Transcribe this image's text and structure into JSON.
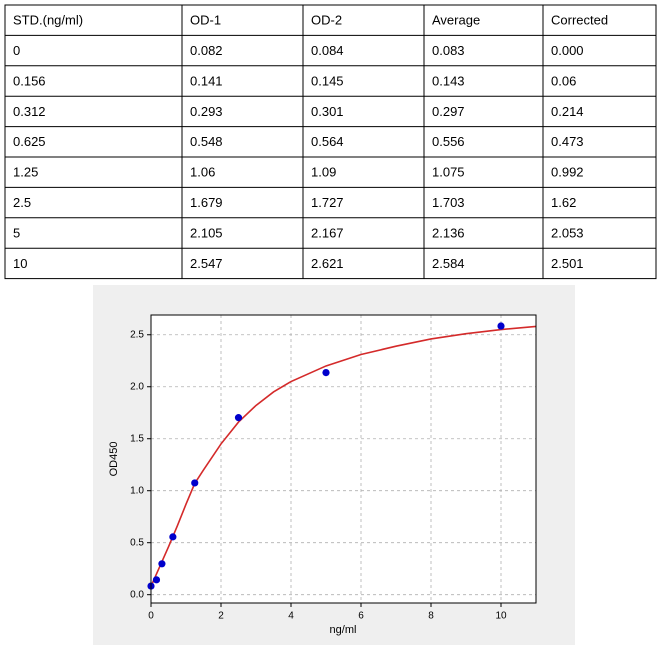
{
  "table": {
    "header": [
      "STD.(ng/ml)",
      "OD-1",
      "OD-2",
      "Average",
      "Corrected"
    ],
    "rows": [
      [
        "0",
        "0.082",
        "0.084",
        "0.083",
        "0.000"
      ],
      [
        "0.156",
        "0.141",
        "0.145",
        "0.143",
        "0.06"
      ],
      [
        "0.312",
        "0.293",
        "0.301",
        "0.297",
        "0.214"
      ],
      [
        "0.625",
        "0.548",
        "0.564",
        "0.556",
        "0.473"
      ],
      [
        "1.25",
        "1.06",
        "1.09",
        "1.075",
        "0.992"
      ],
      [
        "2.5",
        "1.679",
        "1.727",
        "1.703",
        "1.62"
      ],
      [
        "5",
        "2.105",
        "2.167",
        "2.136",
        "2.053"
      ],
      [
        "10",
        "2.547",
        "2.621",
        "2.584",
        "2.501"
      ]
    ]
  },
  "chart_data": {
    "type": "scatter",
    "x_label": "ng/ml",
    "y_label": "OD450",
    "xlim": [
      0,
      11
    ],
    "xticks": [
      0,
      2,
      4,
      6,
      8,
      10
    ],
    "ylim": [
      -0.08,
      2.69
    ],
    "yticks": [
      {
        "value": 0,
        "label": "0.0"
      },
      0.5,
      {
        "value": 1,
        "label": "1.0"
      },
      1.5,
      {
        "value": 2,
        "label": "2.0"
      },
      2.5
    ],
    "grid": true,
    "series": [
      {
        "type": "scatter",
        "color": "#0000cc",
        "x": [
          0,
          0.156,
          0.312,
          0.625,
          1.25,
          2.5,
          5,
          10
        ],
        "values": [
          0.083,
          0.143,
          0.297,
          0.556,
          1.075,
          1.703,
          2.136,
          2.584
        ]
      },
      {
        "type": "line",
        "color": "#d42a2a",
        "x": [
          0,
          0.25,
          0.5,
          0.75,
          1,
          1.25,
          1.5,
          2,
          2.5,
          3,
          3.5,
          4,
          5,
          6,
          7,
          8,
          9,
          10,
          11
        ],
        "values": [
          0.08,
          0.27,
          0.46,
          0.66,
          0.87,
          1.07,
          1.2,
          1.45,
          1.66,
          1.82,
          1.95,
          2.05,
          2.2,
          2.31,
          2.39,
          2.46,
          2.51,
          2.55,
          2.58
        ]
      }
    ]
  }
}
